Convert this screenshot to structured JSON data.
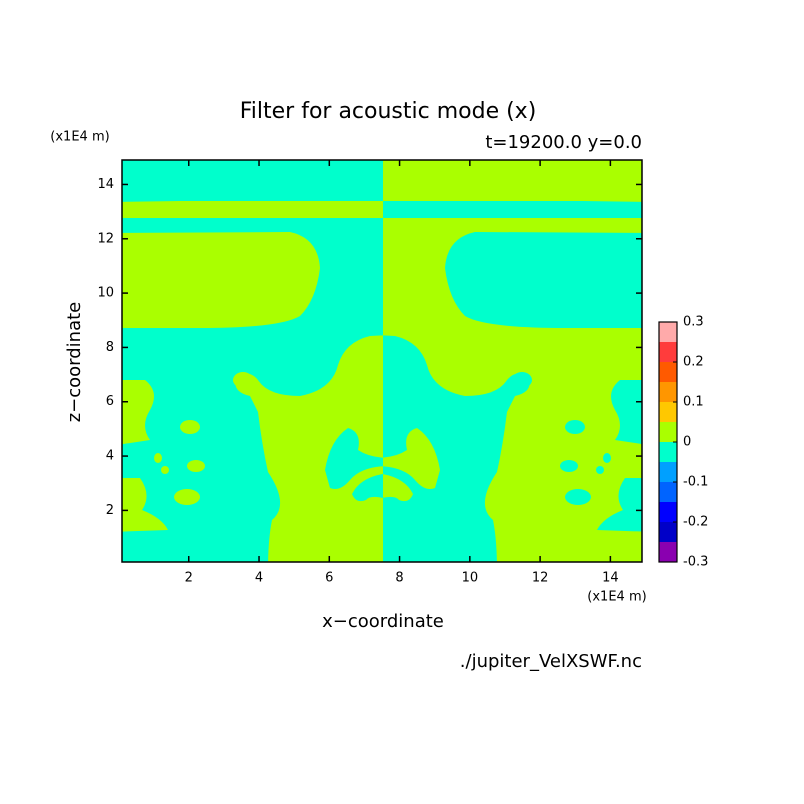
{
  "chart_data": {
    "type": "contour",
    "title": "Filter for acoustic mode (x)",
    "subtitle": "t=19200.0 y=0.0",
    "x_label": "x−coordinate",
    "y_label": "z−coordinate",
    "x_unit": "(x1E4 m)",
    "y_unit": "(x1E4 m)",
    "source": "./jupiter_VelXSWF.nc",
    "xlim": [
      0.1,
      14.9
    ],
    "ylim": [
      0.1,
      14.9
    ],
    "xticks": [
      2,
      4,
      6,
      8,
      10,
      12,
      14
    ],
    "yticks": [
      2,
      4,
      6,
      8,
      10,
      12,
      14
    ],
    "colorbar": {
      "levels": [
        -0.3,
        -0.25,
        -0.2,
        -0.15,
        -0.1,
        -0.05,
        0,
        0.05,
        0.1,
        0.15,
        0.2,
        0.25,
        0.3
      ],
      "colors": [
        "#8a00b0",
        "#0000c8",
        "#0000ff",
        "#0064ff",
        "#00a0ff",
        "#00ffcc",
        "#aaff00",
        "#ffc800",
        "#ff9600",
        "#ff5a00",
        "#ff3c3c",
        "#ffaaaa"
      ],
      "ticks": [
        -0.3,
        -0.2,
        -0.1,
        0,
        0.1,
        0.2,
        0.3
      ]
    }
  }
}
